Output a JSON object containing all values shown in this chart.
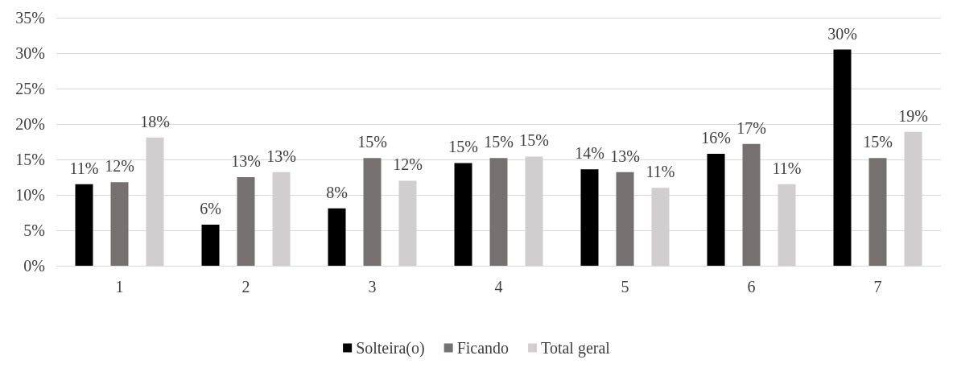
{
  "chart_data": {
    "type": "bar",
    "categories": [
      "1",
      "2",
      "3",
      "4",
      "5",
      "6",
      "7"
    ],
    "series": [
      {
        "name": "Solteira(o)",
        "color": "#000000",
        "values": [
          11.5,
          5.8,
          8.1,
          14.5,
          13.6,
          15.8,
          30.5
        ],
        "value_labels": [
          "11%",
          "6%",
          "8%",
          "15%",
          "14%",
          "16%",
          "30%"
        ]
      },
      {
        "name": "Ficando",
        "color": "#767171",
        "values": [
          11.8,
          12.5,
          15.2,
          15.2,
          13.2,
          17.2,
          15.2
        ],
        "value_labels": [
          "12%",
          "13%",
          "15%",
          "15%",
          "13%",
          "17%",
          "15%"
        ]
      },
      {
        "name": "Total geral",
        "color": "#d0cece",
        "values": [
          18.1,
          13.2,
          12.0,
          15.4,
          11.0,
          11.5,
          18.9
        ],
        "value_labels": [
          "18%",
          "13%",
          "12%",
          "15%",
          "11%",
          "11%",
          "19%"
        ]
      }
    ],
    "ylim": [
      0,
      35
    ],
    "yticks": [
      {
        "value": 0,
        "label": "0%"
      },
      {
        "value": 5,
        "label": "5%"
      },
      {
        "value": 10,
        "label": "10%"
      },
      {
        "value": 15,
        "label": "15%"
      },
      {
        "value": 20,
        "label": "20%"
      },
      {
        "value": 25,
        "label": "25%"
      },
      {
        "value": 30,
        "label": "30%"
      },
      {
        "value": 35,
        "label": "35%"
      }
    ],
    "grid": "y",
    "legend": "bottom"
  }
}
